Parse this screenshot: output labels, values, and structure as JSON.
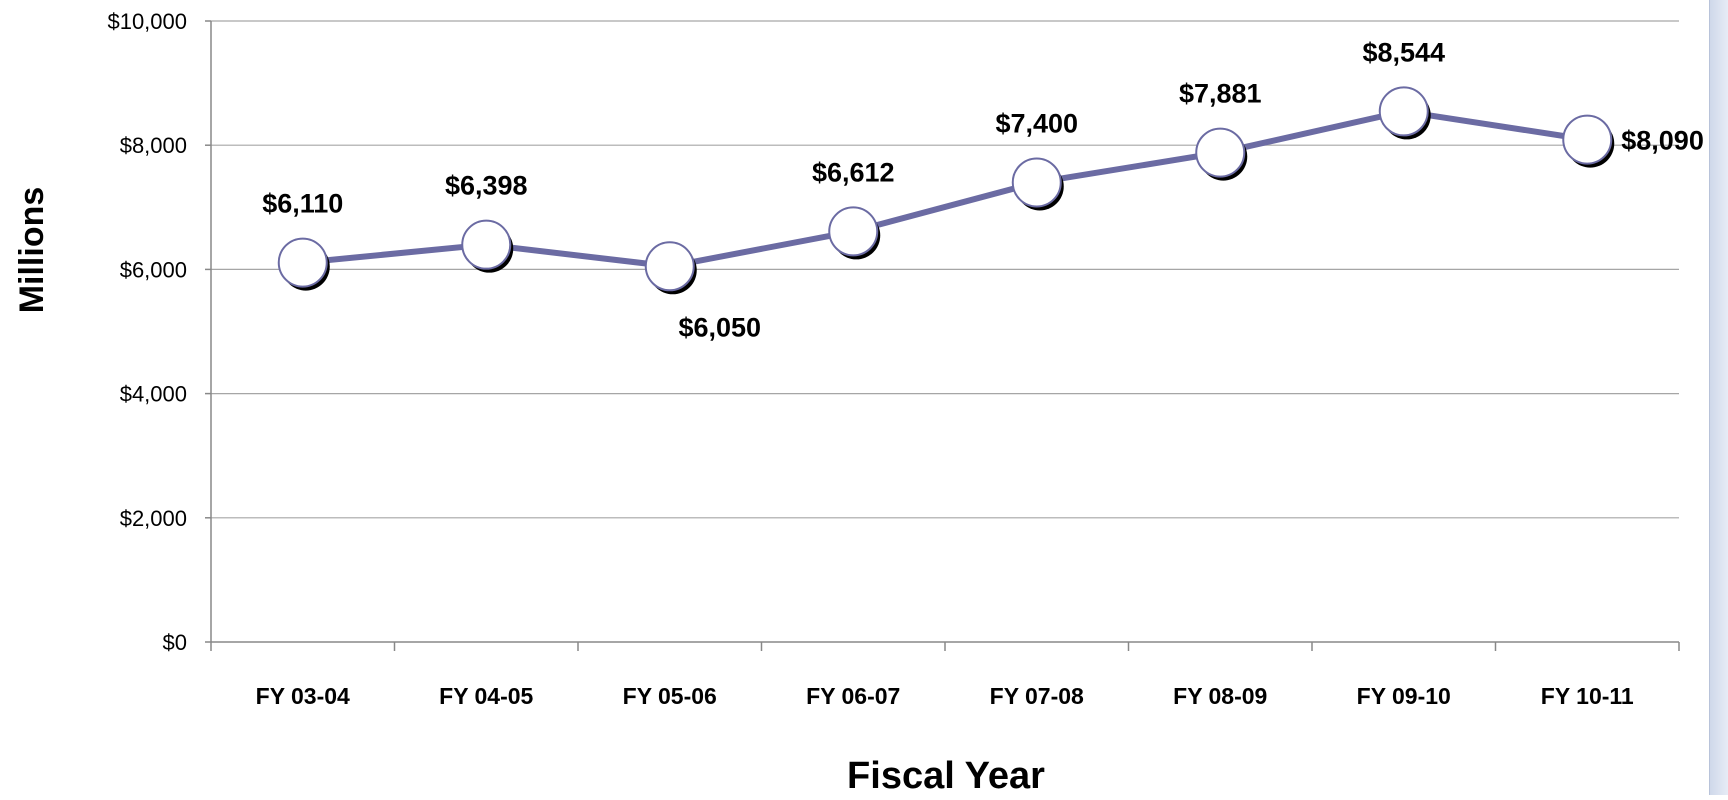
{
  "chart_data": {
    "type": "line",
    "categories": [
      "FY 03-04",
      "FY 04-05",
      "FY 05-06",
      "FY 06-07",
      "FY 07-08",
      "FY 08-09",
      "FY 09-10",
      "FY 10-11"
    ],
    "series": [
      {
        "values": [
          6110,
          6398,
          6050,
          6612,
          7400,
          7881,
          8544,
          8090
        ],
        "data_labels": [
          "$6,110",
          "$6,398",
          "$6,050",
          "$6,612",
          "$7,400",
          "$7,881",
          "$8,544",
          "$8,090"
        ]
      }
    ],
    "xlabel": "Fiscal Year",
    "ylabel": "Millions",
    "ylim": [
      0,
      10000
    ],
    "yticks": [
      0,
      2000,
      4000,
      6000,
      8000,
      10000
    ],
    "ytick_labels": [
      "$0",
      "$2,000",
      "$4,000",
      "$6,000",
      "$8,000",
      "$10,000"
    ],
    "grid": true,
    "legend": "none",
    "colors": {
      "line": "#6b6ba3",
      "marker_fill": "#ffffff",
      "marker_shadow": "#000000",
      "gridline": "#a6a6a6"
    }
  }
}
